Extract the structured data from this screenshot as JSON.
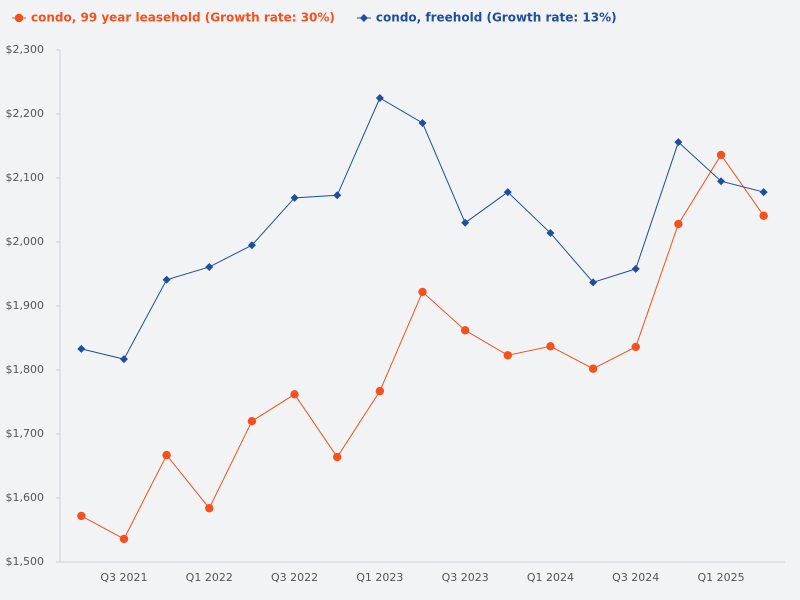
{
  "chart_data": {
    "type": "line",
    "categories": [
      null,
      "Q3 2021",
      null,
      "Q1 2022",
      null,
      "Q3 2022",
      null,
      "Q1 2023",
      null,
      "Q3 2023",
      null,
      "Q1 2024",
      null,
      "Q3 2024",
      null,
      "Q1 2025",
      null
    ],
    "series": [
      {
        "name": "condo, 99 year leasehold (Growth rate: 30%)",
        "color": "#f4511e",
        "marker": "circle",
        "values": [
          1572,
          1536,
          1667,
          1584,
          1720,
          1762,
          1664,
          1767,
          1922,
          1862,
          1823,
          1837,
          1802,
          1836,
          2028,
          2136,
          2041
        ]
      },
      {
        "name": "condo, freehold (Growth rate: 13%)",
        "color": "#1f4e9c",
        "marker": "diamond",
        "values": [
          1833,
          1817,
          1941,
          1961,
          1995,
          2069,
          2073,
          2225,
          2186,
          2030,
          2078,
          2014,
          1937,
          1958,
          2156,
          2095,
          2078
        ]
      }
    ],
    "ylim": [
      1500,
      2300
    ],
    "yticks": [
      {
        "value": 1500,
        "label": "$1,500"
      },
      {
        "value": 1600,
        "label": "$1,600"
      },
      {
        "value": 1700,
        "label": "$1,700"
      },
      {
        "value": 1800,
        "label": "$1,800"
      },
      {
        "value": 1900,
        "label": "$1,900"
      },
      {
        "value": 2000,
        "label": "$2,000"
      },
      {
        "value": 2100,
        "label": "$2,100"
      },
      {
        "value": 2200,
        "label": "$2,200"
      },
      {
        "value": 2300,
        "label": "$2,300"
      }
    ],
    "grid": false,
    "legend": "top-left"
  }
}
